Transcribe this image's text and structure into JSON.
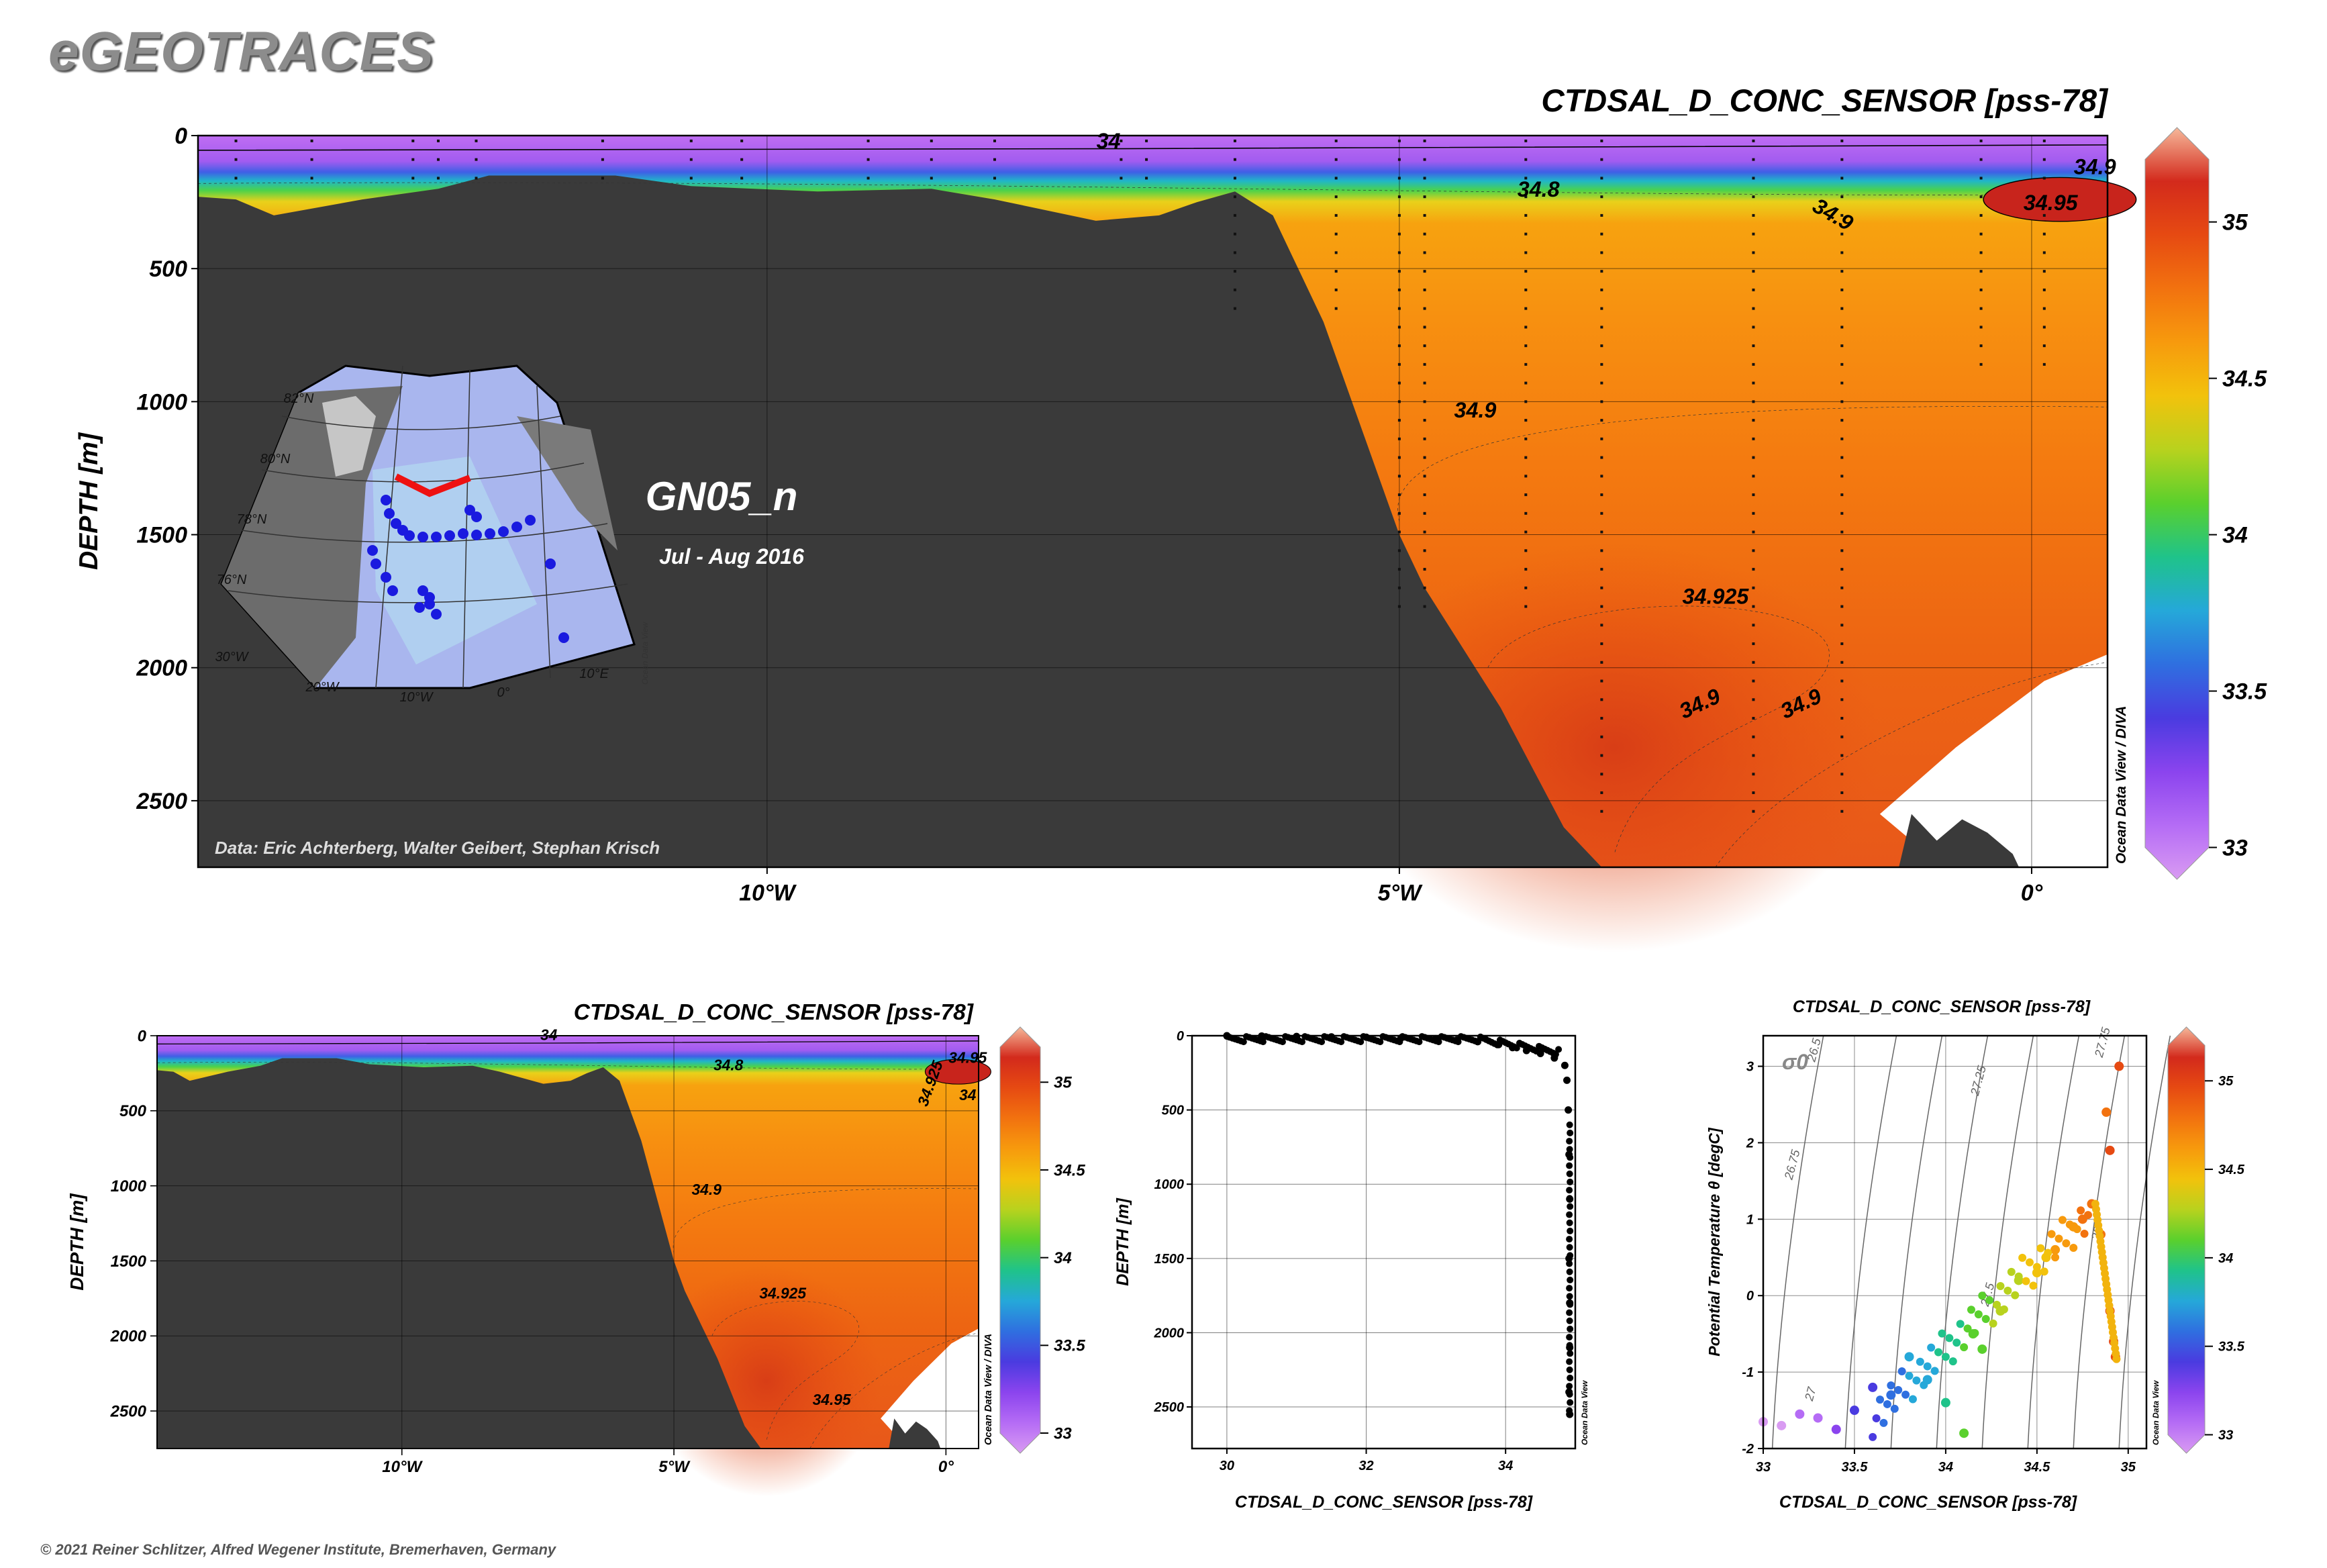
{
  "header": {
    "logo": "eGEOTRACES",
    "copyright": "© 2021 Reiner Schlitzer, Alfred Wegener Institute, Bremerhaven, Germany"
  },
  "colors": {
    "topography": "#3a3a3a",
    "colorbar": [
      "#d99bf2",
      "#b56cf5",
      "#8b44ee",
      "#4a3be0",
      "#2f6fe0",
      "#25a8d9",
      "#1fc38a",
      "#5ad02d",
      "#b8d21e",
      "#f2c20c",
      "#f79a0d",
      "#f2720f",
      "#e64a12",
      "#d32a1c",
      "#f6b89a"
    ]
  },
  "main_section": {
    "title": "CTDSAL_D_CONC_SENSOR [pss-78]",
    "y_axis_label": "DEPTH [m]",
    "y_ticks": [
      "0",
      "500",
      "1000",
      "1500",
      "2000",
      "2500"
    ],
    "x_ticks": [
      "10°W",
      "5°W",
      "0°"
    ],
    "cruise_label": "GN05_n",
    "date_label": "Jul - Aug 2016",
    "credit": "Data: Eric Achterberg, Walter Geibert, Stephan Krisch",
    "side_label": "Ocean Data View / DIVA",
    "colorbar_ticks": [
      "35",
      "34.5",
      "34",
      "33.5",
      "33"
    ],
    "contour_labels": [
      "34",
      "34.8",
      "34.9",
      "34.95",
      "34.9",
      "34.9",
      "34.925",
      "34.9",
      "34.9"
    ],
    "inset_map": {
      "lat_labels": [
        "82°N",
        "80°N",
        "78°N",
        "76°N"
      ],
      "lon_labels": [
        "30°W",
        "20°W",
        "10°W",
        "0°",
        "10°E"
      ],
      "credit": "Ocean Data View"
    }
  },
  "small_section": {
    "title": "CTDSAL_D_CONC_SENSOR [pss-78]",
    "y_axis_label": "DEPTH [m]",
    "y_ticks": [
      "0",
      "500",
      "1000",
      "1500",
      "2000",
      "2500"
    ],
    "x_ticks": [
      "10°W",
      "5°W",
      "0°"
    ],
    "side_label": "Ocean Data View / DIVA",
    "colorbar_ticks": [
      "35",
      "34.5",
      "34",
      "33.5",
      "33"
    ],
    "contour_labels": [
      "34",
      "34.8",
      "34.9",
      "34.925",
      "34.95",
      "34.925",
      "34.95",
      "34"
    ]
  },
  "profile_plot": {
    "x_axis_label": "CTDSAL_D_CONC_SENSOR [pss-78]",
    "y_axis_label": "DEPTH [m]",
    "y_ticks": [
      "0",
      "500",
      "1000",
      "1500",
      "2000",
      "2500"
    ],
    "x_ticks": [
      "30",
      "32",
      "34"
    ],
    "side_label": "Ocean Data View"
  },
  "ts_plot": {
    "title": "CTDSAL_D_CONC_SENSOR [pss-78]",
    "x_axis_label": "CTDSAL_D_CONC_SENSOR [pss-78]",
    "y_axis_label": "Potential Temperature θ [degC]",
    "sigma_label": "σ0",
    "x_ticks": [
      "33",
      "33.5",
      "34",
      "34.5",
      "35"
    ],
    "y_ticks": [
      "3",
      "2",
      "1",
      "0",
      "-1",
      "-2"
    ],
    "isopycnal_labels": [
      "26.5",
      "26.75",
      "27",
      "27.25",
      "27.5",
      "27.75",
      "28"
    ],
    "side_label": "Ocean Data View",
    "colorbar_ticks": [
      "35",
      "34.5",
      "34",
      "33.5",
      "33"
    ]
  },
  "chart_data": [
    {
      "type": "heatmap",
      "title": "CTDSAL_D_CONC_SENSOR [pss-78]",
      "xlabel": "",
      "ylabel": "DEPTH [m]",
      "xlim": [
        -14.5,
        0.6
      ],
      "ylim": [
        2750,
        0
      ],
      "x_ticks": [
        -10,
        -5,
        0
      ],
      "y_ticks": [
        0,
        500,
        1000,
        1500,
        2000,
        2500
      ],
      "colorbar_range": [
        33,
        35.2
      ],
      "contour_levels": [
        34,
        34.8,
        34.9,
        34.925,
        34.95
      ],
      "stations_lon": [
        -14.2,
        -13.6,
        -12.8,
        -12.6,
        -12.3,
        -11.3,
        -10.6,
        -10.2,
        -9.2,
        -8.7,
        -8.2,
        -7.2,
        -7.0,
        -6.3,
        -5.5,
        -5.0,
        -4.8,
        -4.0,
        -3.4,
        -2.2,
        -1.5,
        -0.4,
        0.1
      ]
    },
    {
      "type": "scatter",
      "xlabel": "CTDSAL_D_CONC_SENSOR [pss-78]",
      "ylabel": "DEPTH [m]",
      "xlim": [
        29.5,
        35
      ],
      "ylim": [
        2780,
        0
      ],
      "profile_x": [
        30.0,
        30.5,
        31.0,
        31.5,
        32.0,
        32.5,
        33.0,
        33.3,
        33.6,
        33.9,
        34.1,
        34.3,
        34.5,
        34.7,
        34.85,
        34.88,
        34.9,
        34.91,
        34.92,
        34.91,
        34.92,
        34.92,
        34.91,
        34.92
      ],
      "profile_depth": [
        0,
        2,
        5,
        8,
        10,
        15,
        20,
        30,
        40,
        60,
        80,
        100,
        120,
        150,
        200,
        300,
        500,
        800,
        1100,
        1500,
        1800,
        2100,
        2400,
        2550
      ]
    },
    {
      "type": "scatter",
      "title": "CTDSAL_D_CONC_SENSOR [pss-78]",
      "xlabel": "CTDSAL_D_CONC_SENSOR [pss-78]",
      "ylabel": "Potential Temperature θ [degC]",
      "xlim": [
        33,
        35.1
      ],
      "ylim": [
        -2,
        3.4
      ],
      "salinity": [
        33.0,
        33.1,
        33.2,
        33.3,
        33.4,
        33.5,
        33.6,
        33.7,
        33.8,
        33.9,
        34.0,
        34.1,
        34.15,
        34.2,
        34.3,
        34.4,
        34.5,
        34.55,
        34.6,
        34.7,
        34.75,
        34.8,
        34.85,
        34.9,
        34.92,
        34.93,
        34.9,
        34.88,
        34.95
      ],
      "theta": [
        -1.65,
        -1.7,
        -1.55,
        -1.6,
        -1.75,
        -1.5,
        -1.2,
        -1.3,
        -0.8,
        -1.1,
        -1.4,
        -1.8,
        -0.5,
        -0.7,
        -0.2,
        0.2,
        0.3,
        0.5,
        0.6,
        0.9,
        1.0,
        1.2,
        0.8,
        -0.2,
        -0.6,
        -0.8,
        1.9,
        2.4,
        3.0
      ]
    }
  ]
}
